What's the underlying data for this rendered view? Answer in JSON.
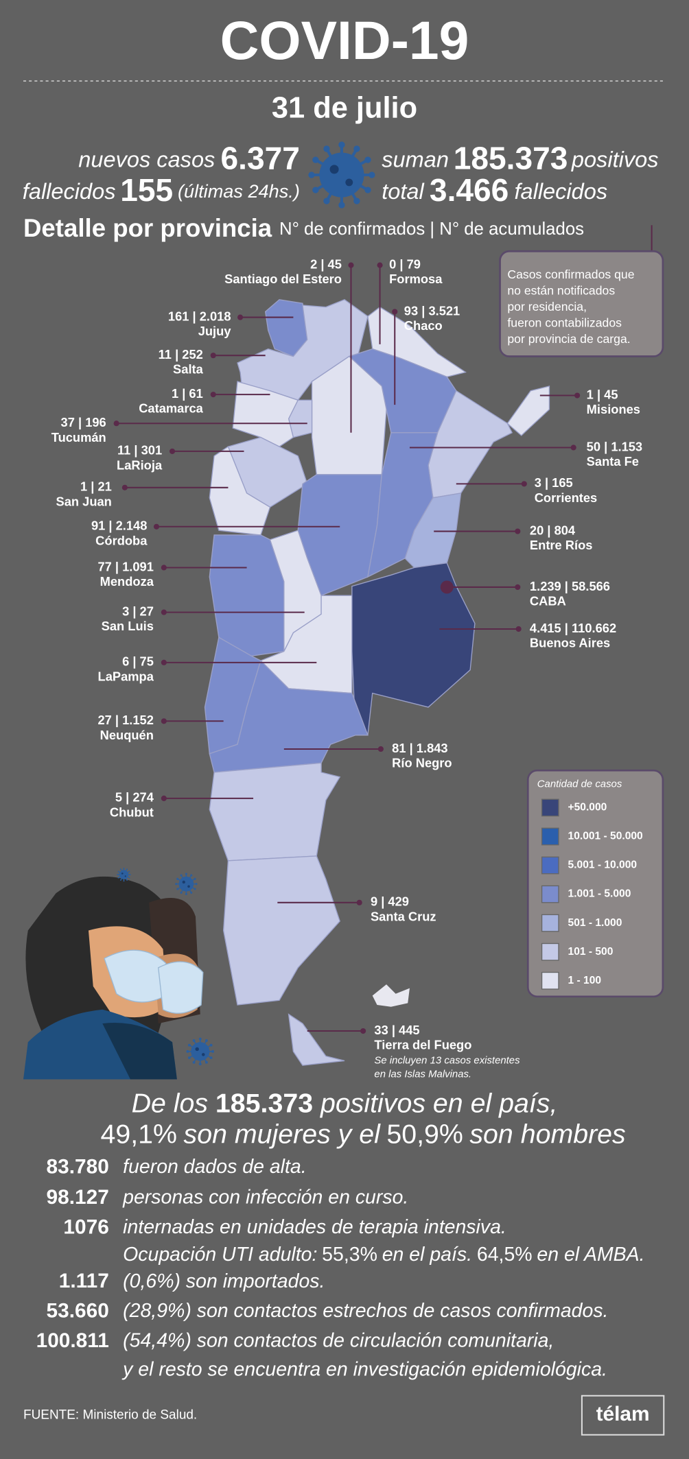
{
  "header": {
    "title": "COVID-19",
    "date": "31 de julio"
  },
  "summary": {
    "new_cases_label": "nuevos casos",
    "new_cases": "6.377",
    "deaths_label": "fallecidos",
    "deaths": "155",
    "deaths_note": "(últimas 24hs.)",
    "total_prefix": "suman",
    "total_cases": "185.373",
    "total_suffix": "positivos",
    "total_deaths_prefix": "total",
    "total_deaths": "3.466",
    "total_deaths_suffix": "fallecidos"
  },
  "detail": {
    "title": "Detalle por provincia",
    "subtitle": "N° de confirmados | N° de acumulados",
    "note": [
      "Casos confirmados que",
      "no están notificados",
      "por residencia,",
      "fueron contabilizados",
      "por provincia de carga."
    ]
  },
  "provinces": [
    {
      "value": "2 | 45",
      "name": "Santiago del Estero"
    },
    {
      "value": "0 | 79",
      "name": "Formosa"
    },
    {
      "value": "161 | 2.018",
      "name": "Jujuy"
    },
    {
      "value": "93 | 3.521",
      "name": "Chaco"
    },
    {
      "value": "11 | 252",
      "name": "Salta"
    },
    {
      "value": "1 | 61",
      "name": "Catamarca"
    },
    {
      "value": "1 | 45",
      "name": "Misiones"
    },
    {
      "value": "37 | 196",
      "name": "Tucumán"
    },
    {
      "value": "11 | 301",
      "name": "LaRioja"
    },
    {
      "value": "50 | 1.153",
      "name": "Santa Fe"
    },
    {
      "value": "1 | 21",
      "name": "San Juan"
    },
    {
      "value": "3 | 165",
      "name": "Corrientes"
    },
    {
      "value": "91 | 2.148",
      "name": "Córdoba"
    },
    {
      "value": "20 | 804",
      "name": "Entre Ríos"
    },
    {
      "value": "77 | 1.091",
      "name": "Mendoza"
    },
    {
      "value": "1.239 | 58.566",
      "name": "CABA"
    },
    {
      "value": "3 | 27",
      "name": "San Luis"
    },
    {
      "value": "4.415 | 110.662",
      "name": "Buenos Aires"
    },
    {
      "value": "6 | 75",
      "name": "LaPampa"
    },
    {
      "value": "27 | 1.152",
      "name": "Neuquén"
    },
    {
      "value": "81 | 1.843",
      "name": "Río Negro"
    },
    {
      "value": "5 | 274",
      "name": "Chubut"
    },
    {
      "value": "9 | 429",
      "name": "Santa Cruz"
    },
    {
      "value": "33 | 445",
      "name": "Tierra del Fuego"
    }
  ],
  "tierra_note": [
    "Se incluyen 13 casos existentes",
    "en las Islas Malvinas."
  ],
  "legend": {
    "title": "Cantidad de casos",
    "items": [
      "+50.000",
      "10.001 - 50.000",
      "5.001 - 10.000",
      "1.001 - 5.000",
      "501 - 1.000",
      "101 - 500",
      "1 - 100"
    ]
  },
  "stats": {
    "intro": {
      "prefix": "De los",
      "total": "185.373",
      "suffix": "positivos en el país,",
      "women": "49,1%",
      "women_text": "son mujeres y el",
      "men": "50,9%",
      "men_text": "son hombres"
    },
    "rows": [
      {
        "number": "83.780",
        "text": "fueron dados de alta."
      },
      {
        "number": "98.127",
        "text": "personas con infección en curso."
      },
      {
        "number": "1076",
        "text": "internadas en unidades de terapia intensiva."
      },
      {
        "number": "1.117",
        "text": "(0,6%) son importados."
      },
      {
        "number": "53.660",
        "text": "(28,9%) son contactos estrechos de casos confirmados."
      },
      {
        "number": "100.811",
        "text": "(54,4%) son contactos de circulación comunitaria,"
      }
    ],
    "icu": {
      "prefix": "Ocupación UTI adulto:",
      "country": "55,3%",
      "country_text": "en el país.",
      "amba": "64,5%",
      "amba_text": "en el AMBA."
    },
    "continuation": "y el resto se encuentra en investigación epidemiológica."
  },
  "footer": {
    "source": "FUENTE: Ministerio de Salud.",
    "brand": "télam"
  }
}
